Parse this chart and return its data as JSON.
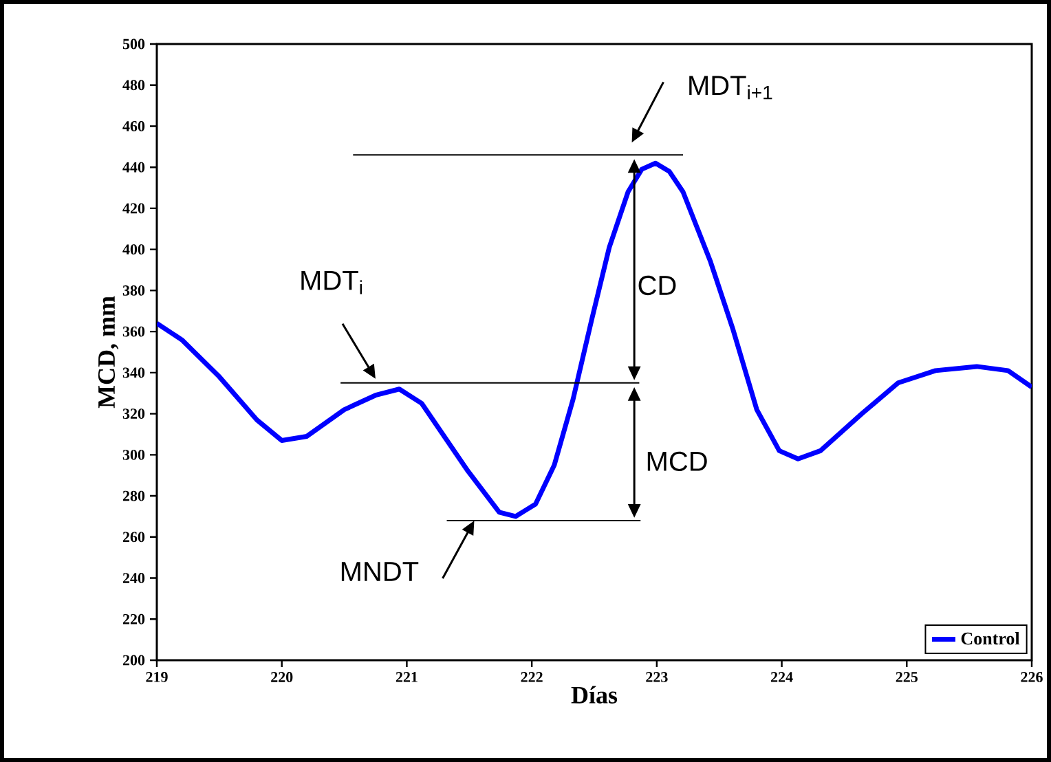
{
  "chart_data": {
    "type": "line",
    "xlabel": "Días",
    "ylabel": "MCD, mm",
    "xlim": [
      219,
      226
    ],
    "xticks": [
      219,
      220,
      221,
      222,
      223,
      224,
      225,
      226
    ],
    "ylim": [
      200,
      500
    ],
    "yticks": [
      200,
      220,
      240,
      260,
      280,
      300,
      320,
      340,
      360,
      380,
      400,
      420,
      440,
      460,
      480,
      500
    ],
    "legend": "bottom right",
    "series": [
      {
        "name": "Control",
        "color": "#0000ff",
        "x": [
          219,
          219.2,
          219.5,
          219.8,
          220.0,
          220.2,
          220.5,
          220.75,
          220.94,
          221.12,
          221.49,
          221.74,
          221.87,
          222.03,
          222.18,
          222.33,
          222.48,
          222.62,
          222.77,
          222.88,
          222.99,
          223.1,
          223.21,
          223.43,
          223.61,
          223.8,
          223.98,
          224.13,
          224.31,
          224.64,
          224.93,
          225.23,
          225.56,
          225.81,
          226.0
        ],
        "values": [
          364,
          356,
          338,
          317,
          307,
          309,
          322,
          329,
          332,
          325,
          292,
          272,
          270,
          276,
          295,
          327,
          366,
          401,
          428,
          439,
          442,
          438,
          428,
          394,
          361,
          322,
          302,
          298,
          302,
          320,
          335,
          341,
          343,
          341,
          333
        ]
      },
      {
        "color": "#000000",
        "x": [
          220.57,
          223.21
        ],
        "values": [
          446,
          446
        ]
      },
      {
        "color": "#000000",
        "x": [
          220.47,
          222.86
        ],
        "values": [
          335,
          335
        ]
      },
      {
        "color": "#000000",
        "x": [
          221.32,
          222.87
        ],
        "values": [
          268,
          268
        ]
      }
    ],
    "annotations": [
      "MDT$_{i}$",
      "MDT$_{i+1}$",
      {
        "text": "MNDT",
        "x": 221.54,
        "y": 268
      },
      "CD",
      "MCD"
    ]
  }
}
